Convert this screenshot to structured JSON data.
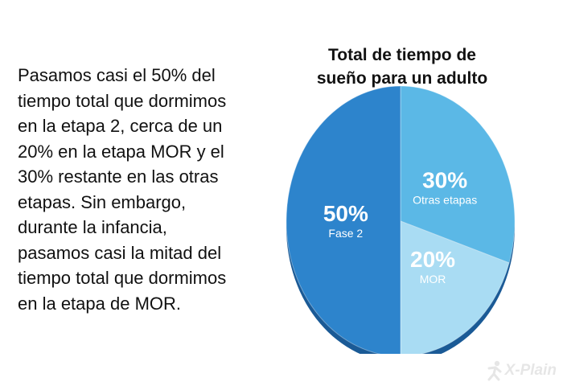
{
  "body_text": "Pasamos casi el 50% del tiempo total que dormimos en la etapa 2, cerca de un 20% en la etapa MOR y el 30% restante en las otras etapas. Sin embargo, durante la infancia, pasamos casi la mitad del tiempo total que dormimos en la etapa de MOR.",
  "body_lines": [
    "Pasamos casi el 50% del",
    "tiempo total que dormimos",
    "en la etapa 2, cerca de un",
    "20% en la etapa MOR y el",
    "30% restante en las otras",
    "etapas. Sin embargo,",
    "durante la infancia,",
    "pasamos casi la mitad del",
    "tiempo total que dormimos",
    "en la etapa de MOR."
  ],
  "logo": {
    "text": "X-Plain"
  },
  "chart_data": {
    "type": "pie",
    "title_lines": [
      "Total de tiempo de",
      "sueño para un adulto"
    ],
    "title": "Total de tiempo de sueño para un adulto",
    "slices": [
      {
        "label": "Otras etapas",
        "value": 30,
        "percent_label": "30%",
        "color": "#5bb8e6"
      },
      {
        "label": "MOR",
        "value": 20,
        "percent_label": "20%",
        "color": "#a9dcf3"
      },
      {
        "label": "Fase 2",
        "value": 50,
        "percent_label": "50%",
        "color": "#2d84cc"
      }
    ],
    "colors": {
      "side": "#1a5a96",
      "side_light": "#7fc6ea",
      "label_text": "#ffffff"
    }
  }
}
